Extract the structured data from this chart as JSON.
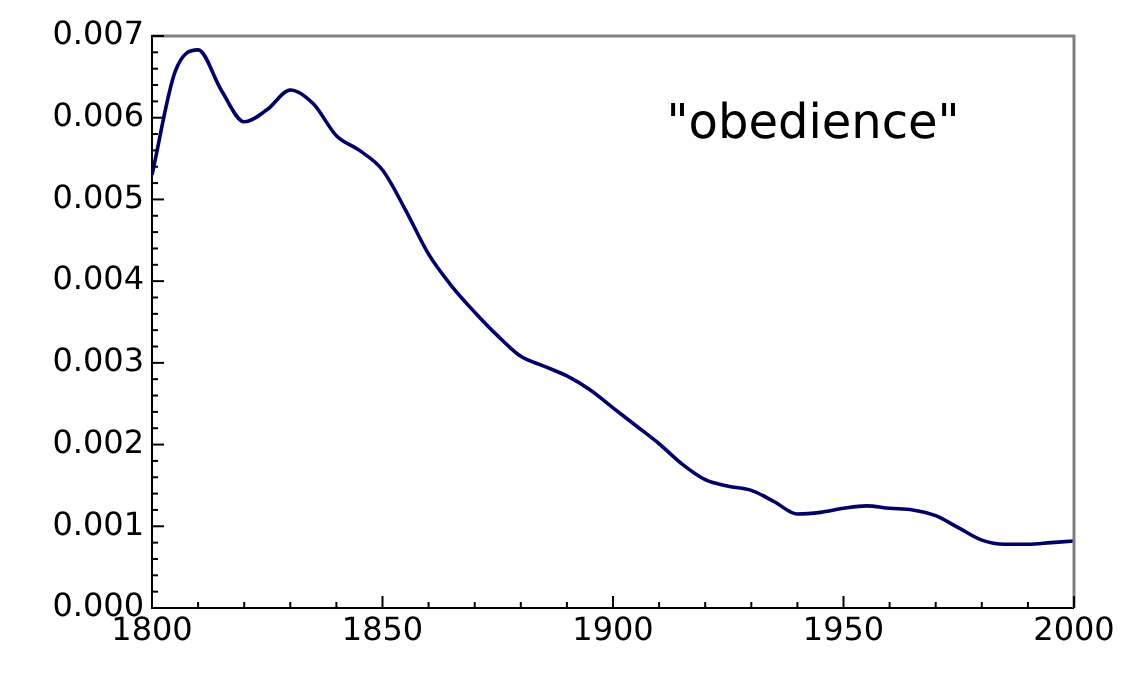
{
  "chart_data": {
    "type": "line",
    "annotations": [
      "\"obedience\""
    ],
    "x": [
      1800,
      1805,
      1810,
      1815,
      1820,
      1825,
      1830,
      1835,
      1840,
      1845,
      1850,
      1855,
      1860,
      1865,
      1870,
      1875,
      1880,
      1885,
      1890,
      1895,
      1900,
      1905,
      1910,
      1915,
      1920,
      1925,
      1930,
      1935,
      1940,
      1945,
      1950,
      1955,
      1960,
      1965,
      1970,
      1975,
      1980,
      1985,
      1990,
      1995,
      2000
    ],
    "series": [
      {
        "color": "#000066",
        "values": [
          0.0053,
          0.00656,
          0.00683,
          0.00634,
          0.00595,
          0.0061,
          0.00634,
          0.00617,
          0.00578,
          0.0056,
          0.00536,
          0.00487,
          0.00433,
          0.00394,
          0.00362,
          0.00333,
          0.00308,
          0.00296,
          0.00284,
          0.00267,
          0.00245,
          0.00223,
          0.00201,
          0.00176,
          0.00157,
          0.00149,
          0.00144,
          0.0013,
          0.00115,
          0.00117,
          0.00122,
          0.00125,
          0.00122,
          0.0012,
          0.00113,
          0.00098,
          0.00083,
          0.00078,
          0.00078,
          0.0008,
          0.00082
        ]
      }
    ],
    "xlim": [
      1800,
      2000
    ],
    "xticks": [
      1800,
      {
        "value": 1810,
        "label": null
      },
      {
        "value": 1820,
        "label": null
      },
      {
        "value": 1830,
        "label": null
      },
      {
        "value": 1840,
        "label": null
      },
      1850,
      {
        "value": 1860,
        "label": null
      },
      {
        "value": 1870,
        "label": null
      },
      {
        "value": 1880,
        "label": null
      },
      {
        "value": 1890,
        "label": null
      },
      1900,
      {
        "value": 1910,
        "label": null
      },
      {
        "value": 1920,
        "label": null
      },
      {
        "value": 1930,
        "label": null
      },
      {
        "value": 1940,
        "label": null
      },
      1950,
      {
        "value": 1960,
        "label": null
      },
      {
        "value": 1970,
        "label": null
      },
      {
        "value": 1980,
        "label": null
      },
      {
        "value": 1990,
        "label": null
      },
      2000
    ],
    "ylim": [
      0,
      0.007
    ],
    "yticks": [
      {
        "value": 0,
        "label": "0.000"
      },
      {
        "value": 0.0002,
        "label": null
      },
      {
        "value": 0.0004,
        "label": null
      },
      {
        "value": 0.0006,
        "label": null
      },
      {
        "value": 0.0008,
        "label": null
      },
      {
        "value": 0.001,
        "label": "0.001"
      },
      {
        "value": 0.0012,
        "label": null
      },
      {
        "value": 0.0014,
        "label": null
      },
      {
        "value": 0.0016,
        "label": null
      },
      {
        "value": 0.0018,
        "label": null
      },
      {
        "value": 0.002,
        "label": "0.002"
      },
      {
        "value": 0.0022,
        "label": null
      },
      {
        "value": 0.0024,
        "label": null
      },
      {
        "value": 0.0026,
        "label": null
      },
      {
        "value": 0.0028,
        "label": null
      },
      {
        "value": 0.003,
        "label": "0.003"
      },
      {
        "value": 0.0032,
        "label": null
      },
      {
        "value": 0.0034,
        "label": null
      },
      {
        "value": 0.0036,
        "label": null
      },
      {
        "value": 0.0038,
        "label": null
      },
      {
        "value": 0.004,
        "label": "0.004"
      },
      {
        "value": 0.0042,
        "label": null
      },
      {
        "value": 0.0044,
        "label": null
      },
      {
        "value": 0.0046,
        "label": null
      },
      {
        "value": 0.0048,
        "label": null
      },
      {
        "value": 0.005,
        "label": "0.005"
      },
      {
        "value": 0.0052,
        "label": null
      },
      {
        "value": 0.0054,
        "label": null
      },
      {
        "value": 0.0056,
        "label": null
      },
      {
        "value": 0.0058,
        "label": null
      },
      {
        "value": 0.006,
        "label": "0.006"
      },
      {
        "value": 0.0062,
        "label": null
      },
      {
        "value": 0.0064,
        "label": null
      },
      {
        "value": 0.0066,
        "label": null
      },
      {
        "value": 0.0068,
        "label": null
      },
      {
        "value": 0.007,
        "label": "0.007"
      }
    ],
    "grid": false,
    "legend": false,
    "marker": "none",
    "line_style": "solid"
  }
}
